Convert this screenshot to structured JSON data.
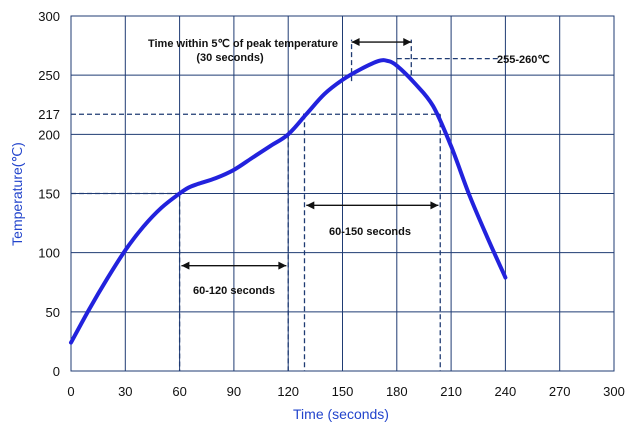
{
  "chart_data": {
    "type": "line",
    "xlabel": "Time (seconds)",
    "ylabel": "Temperature(℃)",
    "xlim": [
      0,
      300
    ],
    "ylim": [
      0,
      300
    ],
    "x_ticks": [
      "0",
      "30",
      "60",
      "90",
      "120",
      "150",
      "180",
      "210",
      "240",
      "270",
      "300"
    ],
    "y_ticks": [
      "0",
      "50",
      "100",
      "150",
      "200",
      "250",
      "300"
    ],
    "extra_y_tick": "217",
    "grid": true,
    "colors": {
      "curve": "#2222dd",
      "axis_label": "#2244cc",
      "grid": "#1f3b73",
      "dashed": "#1f3b73"
    },
    "series": [
      {
        "x": [
          0,
          10,
          20,
          30,
          40,
          50,
          60,
          65,
          70,
          80,
          90,
          100,
          110,
          120,
          130,
          140,
          150,
          160,
          170,
          175,
          180,
          190,
          200,
          210,
          220,
          230,
          240
        ],
        "y": [
          24,
          52,
          78,
          102,
          122,
          138,
          150,
          155,
          158,
          163,
          170,
          180,
          190,
          200,
          217,
          234,
          246,
          255,
          262,
          262,
          258,
          243,
          224,
          190,
          149,
          113,
          79
        ]
      }
    ],
    "annotations": {
      "peak_line1": "Time within 5℃ of peak temperature",
      "peak_line2": "(30 seconds)",
      "peak_range": "255-260℃",
      "above_217": "60-150 seconds",
      "preheat": "60-120 seconds"
    }
  }
}
